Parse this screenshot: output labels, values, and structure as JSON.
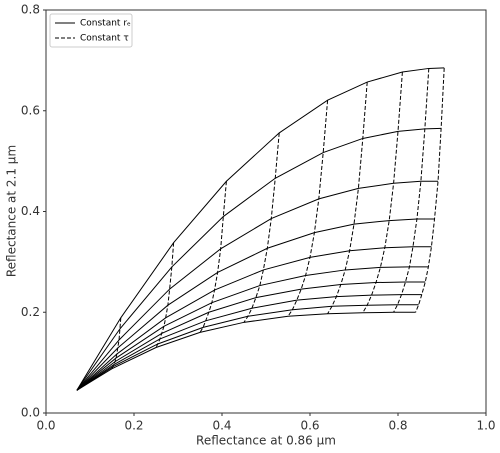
{
  "chart_data": {
    "type": "line",
    "xlabel": "Reflectance at 0.86 µm",
    "ylabel": "Reflectance at 2.1 µm",
    "xlim": [
      0,
      1
    ],
    "ylim": [
      0,
      0.8
    ],
    "xticks": [
      {
        "value": 0,
        "label": "0.0"
      },
      0.2,
      0.4,
      0.6,
      0.8,
      {
        "value": 1,
        "label": "1.0"
      }
    ],
    "yticks": [
      {
        "value": 0,
        "label": "0.0"
      },
      0.2,
      0.4,
      0.6,
      0.8
    ],
    "grid": false,
    "legend": "upper left",
    "series": [
      {
        "name": "Constant rₑ",
        "color": "#000000",
        "dash": "solid",
        "lines": [
          {
            "x": [
              0.07,
              0.17,
              0.29,
              0.41,
              0.53,
              0.64,
              0.73,
              0.81,
              0.87,
              0.905
            ],
            "y": [
              0.045,
              0.189,
              0.338,
              0.46,
              0.556,
              0.621,
              0.657,
              0.677,
              0.684,
              0.685
            ]
          },
          {
            "x": [
              0.07,
              0.168,
              0.286,
              0.403,
              0.521,
              0.63,
              0.72,
              0.8,
              0.861,
              0.898
            ],
            "y": [
              0.045,
              0.167,
              0.29,
              0.39,
              0.466,
              0.517,
              0.545,
              0.559,
              0.564,
              0.565
            ]
          },
          {
            "x": [
              0.07,
              0.166,
              0.281,
              0.397,
              0.512,
              0.62,
              0.71,
              0.79,
              0.852,
              0.891
            ],
            "y": [
              0.045,
              0.145,
              0.246,
              0.326,
              0.386,
              0.425,
              0.446,
              0.456,
              0.46,
              0.46
            ]
          },
          {
            "x": [
              0.07,
              0.163,
              0.277,
              0.39,
              0.503,
              0.61,
              0.7,
              0.78,
              0.843,
              0.883
            ],
            "y": [
              0.045,
              0.129,
              0.214,
              0.279,
              0.327,
              0.358,
              0.375,
              0.382,
              0.385,
              0.385
            ]
          },
          {
            "x": [
              0.07,
              0.161,
              0.272,
              0.383,
              0.494,
              0.6,
              0.69,
              0.77,
              0.834,
              0.876
            ],
            "y": [
              0.045,
              0.117,
              0.189,
              0.244,
              0.284,
              0.309,
              0.322,
              0.328,
              0.33,
              0.33
            ]
          },
          {
            "x": [
              0.07,
              0.159,
              0.268,
              0.377,
              0.486,
              0.59,
              0.68,
              0.76,
              0.826,
              0.869
            ],
            "y": [
              0.045,
              0.109,
              0.172,
              0.219,
              0.253,
              0.273,
              0.284,
              0.289,
              0.29,
              0.29
            ]
          },
          {
            "x": [
              0.07,
              0.157,
              0.263,
              0.37,
              0.477,
              0.58,
              0.67,
              0.75,
              0.817,
              0.862
            ],
            "y": [
              0.045,
              0.102,
              0.158,
              0.2,
              0.229,
              0.246,
              0.255,
              0.259,
              0.26,
              0.26
            ]
          },
          {
            "x": [
              0.07,
              0.154,
              0.259,
              0.363,
              0.468,
              0.57,
              0.66,
              0.74,
              0.808,
              0.854
            ],
            "y": [
              0.045,
              0.096,
              0.147,
              0.183,
              0.208,
              0.224,
              0.231,
              0.234,
              0.235,
              0.235
            ]
          },
          {
            "x": [
              0.07,
              0.152,
              0.254,
              0.357,
              0.459,
              0.56,
              0.65,
              0.73,
              0.799,
              0.847
            ],
            "y": [
              0.045,
              0.092,
              0.137,
              0.17,
              0.192,
              0.205,
              0.212,
              0.214,
              0.215,
              0.215
            ]
          },
          {
            "x": [
              0.07,
              0.15,
              0.25,
              0.35,
              0.45,
              0.55,
              0.64,
              0.72,
              0.79,
              0.84
            ],
            "y": [
              0.045,
              0.088,
              0.13,
              0.16,
              0.18,
              0.192,
              0.197,
              0.199,
              0.2,
              0.2
            ]
          }
        ]
      },
      {
        "name": "Constant τ",
        "color": "#000000",
        "dash": "dashed",
        "lines": [
          {
            "x": [
              0.17,
              0.168,
              0.166,
              0.163,
              0.161,
              0.159,
              0.157,
              0.154,
              0.152,
              0.15
            ],
            "y": [
              0.189,
              0.167,
              0.145,
              0.129,
              0.117,
              0.109,
              0.102,
              0.096,
              0.092,
              0.088
            ]
          },
          {
            "x": [
              0.29,
              0.286,
              0.281,
              0.277,
              0.272,
              0.268,
              0.263,
              0.259,
              0.254,
              0.25
            ],
            "y": [
              0.338,
              0.29,
              0.246,
              0.214,
              0.189,
              0.172,
              0.158,
              0.147,
              0.137,
              0.13
            ]
          },
          {
            "x": [
              0.41,
              0.403,
              0.397,
              0.39,
              0.383,
              0.377,
              0.37,
              0.363,
              0.357,
              0.35
            ],
            "y": [
              0.46,
              0.39,
              0.326,
              0.279,
              0.244,
              0.219,
              0.2,
              0.183,
              0.17,
              0.16
            ]
          },
          {
            "x": [
              0.53,
              0.521,
              0.512,
              0.503,
              0.494,
              0.486,
              0.477,
              0.468,
              0.459,
              0.45
            ],
            "y": [
              0.556,
              0.466,
              0.386,
              0.327,
              0.284,
              0.253,
              0.229,
              0.208,
              0.192,
              0.18
            ]
          },
          {
            "x": [
              0.64,
              0.63,
              0.62,
              0.61,
              0.6,
              0.59,
              0.58,
              0.57,
              0.56,
              0.55
            ],
            "y": [
              0.621,
              0.517,
              0.425,
              0.358,
              0.309,
              0.273,
              0.246,
              0.224,
              0.205,
              0.192
            ]
          },
          {
            "x": [
              0.73,
              0.72,
              0.71,
              0.7,
              0.69,
              0.68,
              0.67,
              0.66,
              0.65,
              0.64
            ],
            "y": [
              0.657,
              0.545,
              0.446,
              0.375,
              0.322,
              0.284,
              0.255,
              0.231,
              0.212,
              0.197
            ]
          },
          {
            "x": [
              0.81,
              0.8,
              0.79,
              0.78,
              0.77,
              0.76,
              0.75,
              0.74,
              0.73,
              0.72
            ],
            "y": [
              0.677,
              0.559,
              0.456,
              0.382,
              0.328,
              0.289,
              0.259,
              0.234,
              0.214,
              0.199
            ]
          },
          {
            "x": [
              0.87,
              0.861,
              0.852,
              0.843,
              0.834,
              0.826,
              0.817,
              0.808,
              0.799,
              0.79
            ],
            "y": [
              0.684,
              0.564,
              0.46,
              0.385,
              0.33,
              0.29,
              0.26,
              0.235,
              0.215,
              0.2
            ]
          },
          {
            "x": [
              0.905,
              0.898,
              0.891,
              0.883,
              0.876,
              0.869,
              0.862,
              0.854,
              0.847,
              0.84
            ],
            "y": [
              0.685,
              0.565,
              0.46,
              0.385,
              0.33,
              0.29,
              0.26,
              0.235,
              0.215,
              0.2
            ]
          }
        ]
      }
    ]
  }
}
